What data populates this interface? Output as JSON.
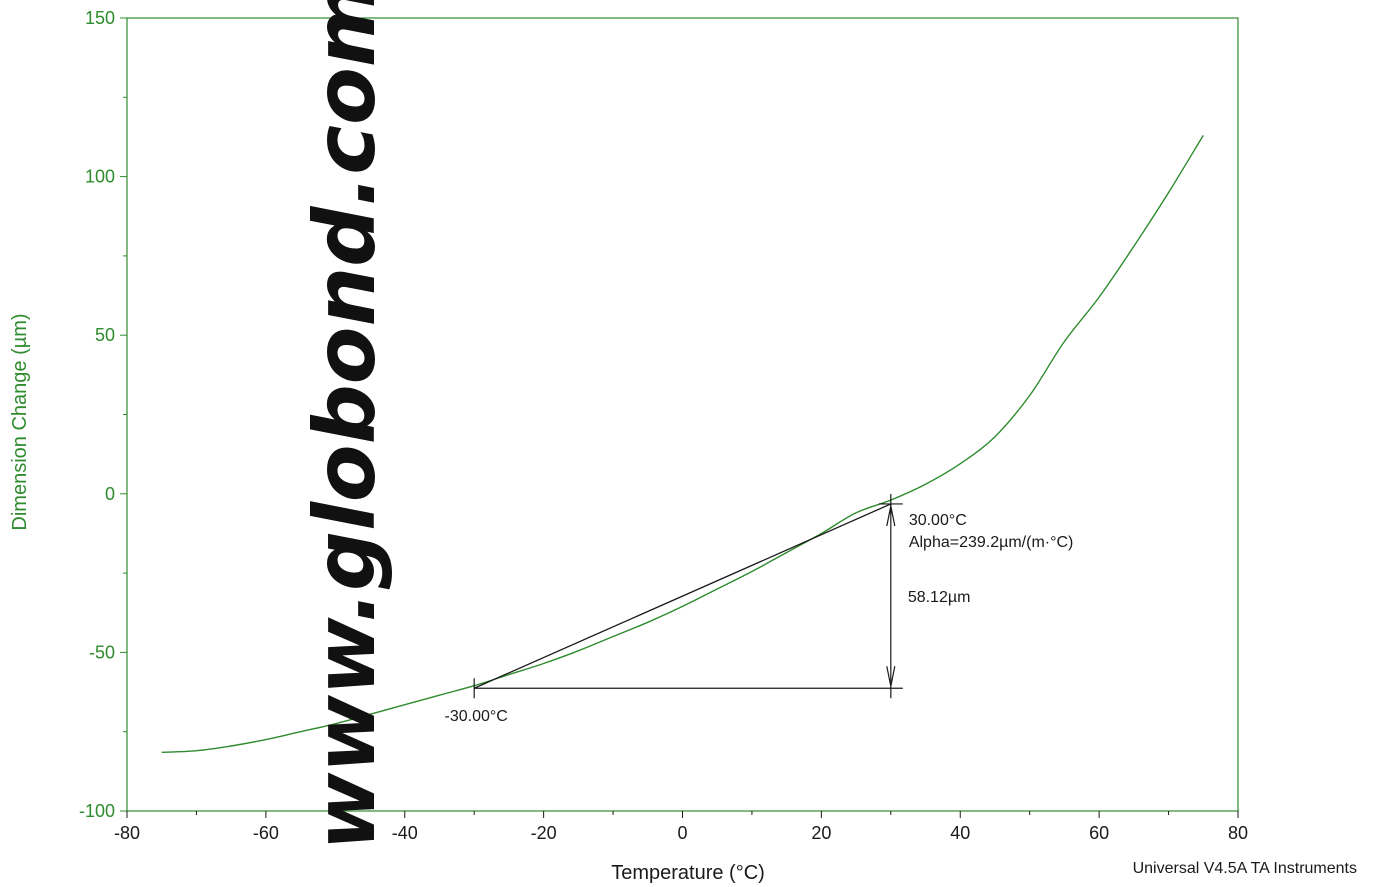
{
  "chart_data": {
    "type": "line",
    "title": "",
    "xlabel": "Temperature (°C)",
    "ylabel": "Dimension Change (µm)",
    "xlim": [
      -80,
      80
    ],
    "ylim": [
      -100,
      150
    ],
    "x_ticks": [
      "-80",
      "-60",
      "-40",
      "-20",
      "0",
      "20",
      "40",
      "60",
      "80"
    ],
    "y_ticks": [
      "-100",
      "-50",
      "0",
      "50",
      "100",
      "150"
    ],
    "grid": false,
    "series": [
      {
        "color": "#2e8b2e",
        "x": [
          -75,
          -70,
          -65,
          -60,
          -55,
          -50,
          -45,
          -40,
          -35,
          -30,
          -25,
          -20,
          -15,
          -10,
          -5,
          0,
          5,
          10,
          15,
          20,
          25,
          30,
          35,
          40,
          45,
          50,
          55,
          60,
          65,
          70,
          75
        ],
        "y": [
          -81.5,
          -81,
          -79.5,
          -77.5,
          -75,
          -72.5,
          -69.5,
          -66.5,
          -63.5,
          -60.5,
          -57,
          -53.5,
          -49.5,
          -45,
          -40.5,
          -35.5,
          -30,
          -24.5,
          -18.5,
          -12.5,
          -6,
          -2,
          3,
          9.5,
          18,
          31,
          48,
          62,
          78,
          95,
          113
        ]
      }
    ],
    "annotations": {
      "start_label": "-30.00°C",
      "end_label": "30.00°C",
      "alpha_label": "Alpha=239.2µm/(m·°C)",
      "delta_label": "58.12µm",
      "start_point": [
        -30,
        -61.3
      ],
      "end_point": [
        30,
        -3.2
      ]
    },
    "axis_color": "#2e8b2e",
    "annotation_color": "#1a1a1a"
  },
  "watermark": "www.globond.com",
  "footer": "Universal V4.5A TA Instruments"
}
